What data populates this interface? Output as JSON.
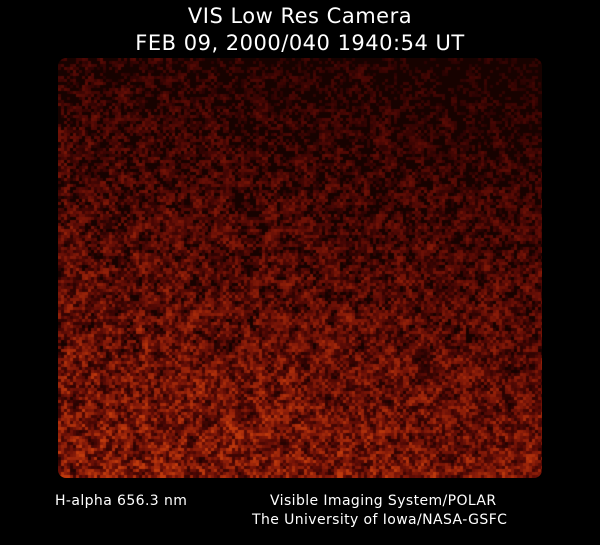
{
  "header": {
    "title": "VIS Low Res Camera",
    "timestamp": "FEB 09, 2000/040 1940:54 UT"
  },
  "image": {
    "description_colormap": "dark red / black",
    "colors": {
      "background": "#000000",
      "bright": "#a8380c",
      "mid": "#6e1a04"
    }
  },
  "footer": {
    "filter": "H-alpha 656.3 nm",
    "instrument": "Visible Imaging System/POLAR",
    "institution": "The University of Iowa/NASA-GSFC"
  }
}
